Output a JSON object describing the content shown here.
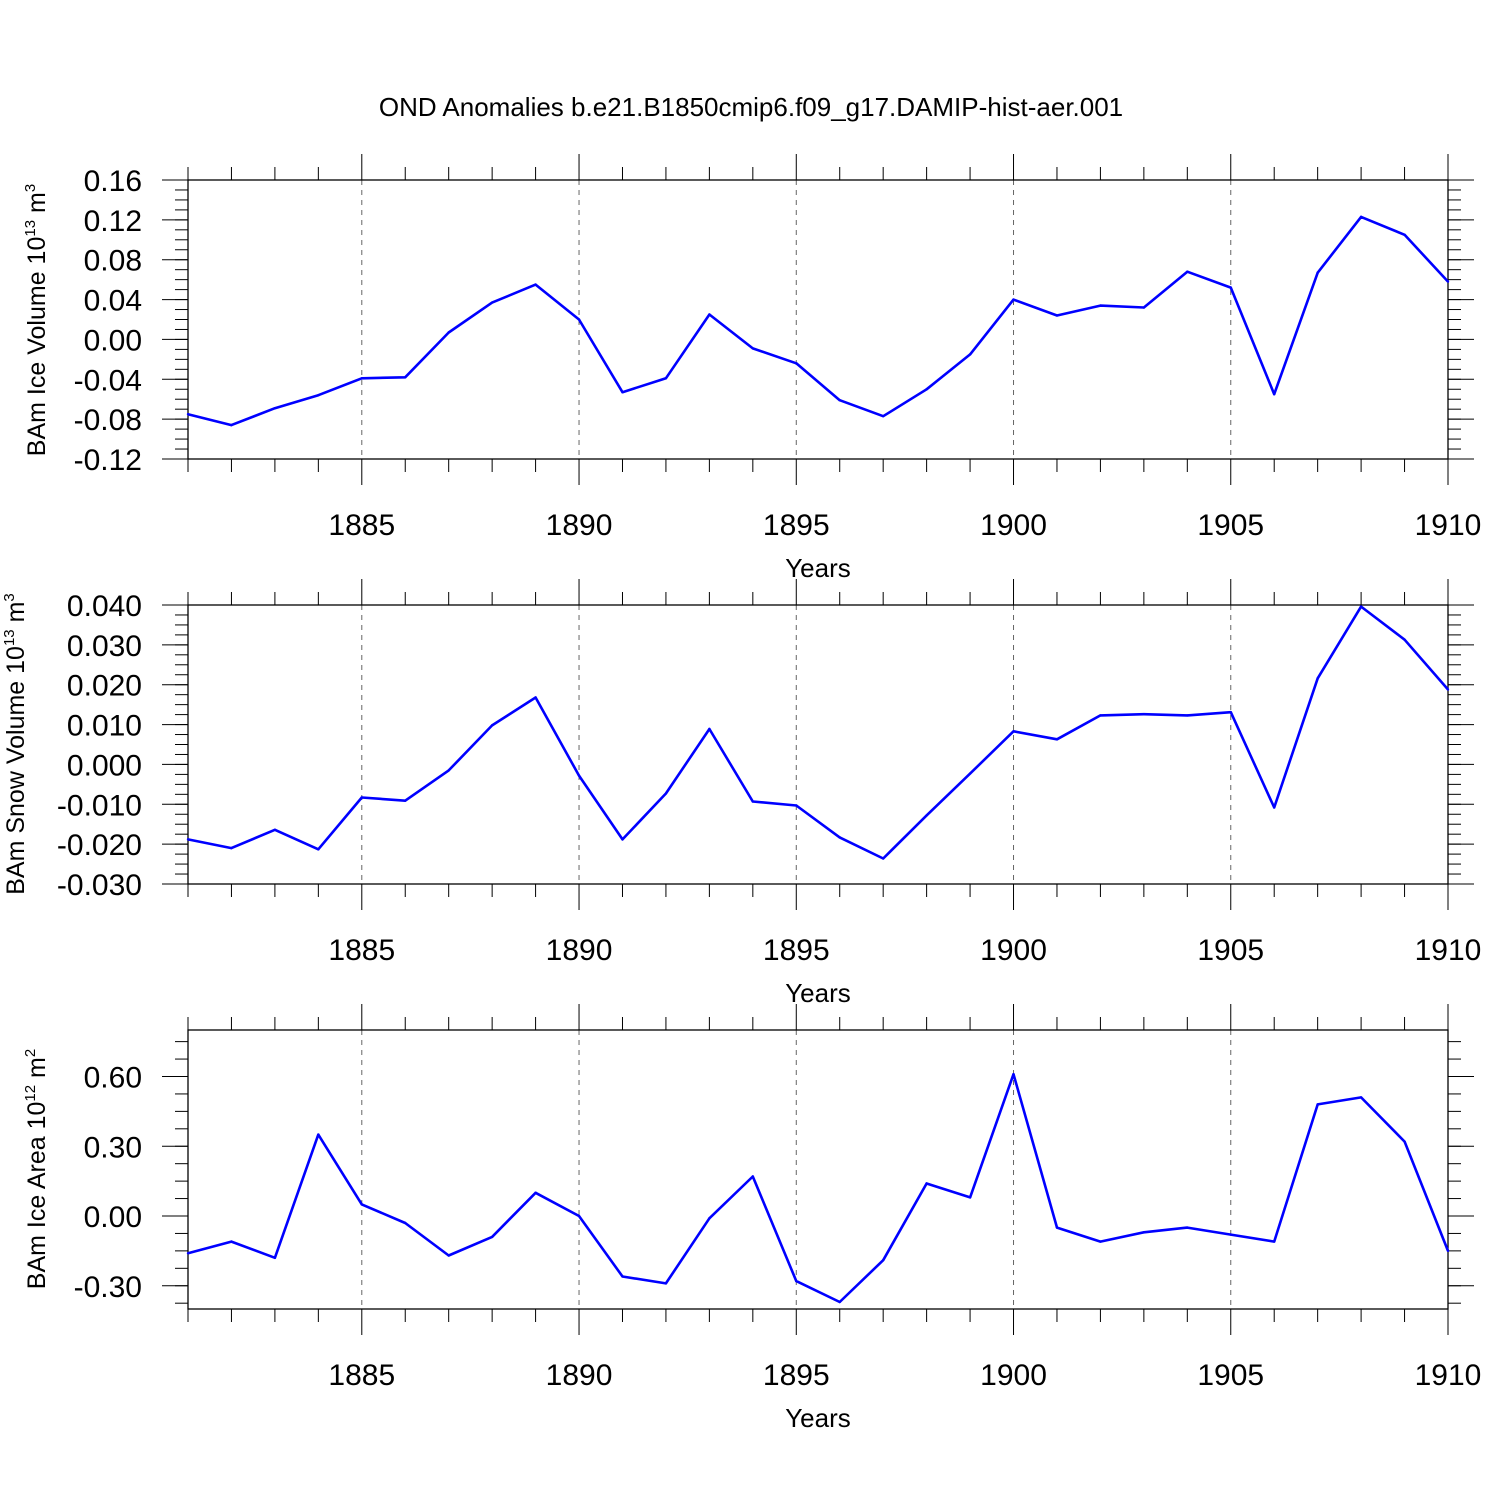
{
  "title": "OND Anomalies b.e21.B1850cmip6.f09_g17.DAMIP-hist-aer.001",
  "chart_data": [
    {
      "type": "line",
      "ylabel": {
        "text": "BAm Ice Volume 10",
        "exp": "13",
        "unit": " m",
        "unit_exp": "3"
      },
      "xlabel": "Years",
      "xlim": [
        1881,
        1910
      ],
      "ylim": [
        -0.12,
        0.16
      ],
      "yticks": [
        -0.12,
        -0.08,
        -0.04,
        0.0,
        0.04,
        0.08,
        0.12,
        0.16
      ],
      "ytick_labels": [
        "-0.12",
        "-0.08",
        "-0.04",
        "0.00",
        "0.04",
        "0.08",
        "0.12",
        "0.16"
      ],
      "xticks": [
        1885,
        1890,
        1895,
        1900,
        1905,
        1910
      ],
      "xtick_labels": [
        "1885",
        "1890",
        "1895",
        "1900",
        "1905",
        "1910"
      ],
      "grid": "vertical dashed at major x ticks",
      "color": "#0000ff",
      "x": [
        1881,
        1882,
        1883,
        1884,
        1885,
        1886,
        1887,
        1888,
        1889,
        1890,
        1891,
        1892,
        1893,
        1894,
        1895,
        1896,
        1897,
        1898,
        1899,
        1900,
        1901,
        1902,
        1903,
        1904,
        1905,
        1906,
        1907,
        1908,
        1909,
        1910
      ],
      "values": [
        -0.075,
        -0.086,
        -0.069,
        -0.056,
        -0.039,
        -0.038,
        0.007,
        0.037,
        0.055,
        0.02,
        -0.053,
        -0.039,
        0.025,
        -0.009,
        -0.024,
        -0.061,
        -0.077,
        -0.05,
        -0.015,
        0.04,
        0.024,
        0.034,
        0.032,
        0.068,
        0.052,
        -0.055,
        0.067,
        0.123,
        0.105,
        0.058
      ]
    },
    {
      "type": "line",
      "ylabel": {
        "text": "BAm Snow Volume 10",
        "exp": "13",
        "unit": " m",
        "unit_exp": "3"
      },
      "xlabel": "Years",
      "xlim": [
        1881,
        1910
      ],
      "ylim": [
        -0.03,
        0.04
      ],
      "yticks": [
        -0.03,
        -0.02,
        -0.01,
        0.0,
        0.01,
        0.02,
        0.03,
        0.04
      ],
      "ytick_labels": [
        "-0.030",
        "-0.020",
        "-0.010",
        "0.000",
        "0.010",
        "0.020",
        "0.030",
        "0.040"
      ],
      "xticks": [
        1885,
        1890,
        1895,
        1900,
        1905,
        1910
      ],
      "xtick_labels": [
        "1885",
        "1890",
        "1895",
        "1900",
        "1905",
        "1910"
      ],
      "grid": "vertical dashed at major x ticks",
      "color": "#0000ff",
      "x": [
        1881,
        1882,
        1883,
        1884,
        1885,
        1886,
        1887,
        1888,
        1889,
        1890,
        1891,
        1892,
        1893,
        1894,
        1895,
        1896,
        1897,
        1898,
        1899,
        1900,
        1901,
        1902,
        1903,
        1904,
        1905,
        1906,
        1907,
        1908,
        1909,
        1910
      ],
      "values": [
        -0.0188,
        -0.021,
        -0.0164,
        -0.0213,
        -0.0083,
        -0.0091,
        -0.0015,
        0.0098,
        0.0168,
        -0.0028,
        -0.0188,
        -0.0073,
        0.0089,
        -0.0093,
        -0.0103,
        -0.0183,
        -0.0236,
        -0.0128,
        -0.0023,
        0.0083,
        0.0063,
        0.0123,
        0.0126,
        0.0123,
        0.0131,
        -0.0108,
        0.0216,
        0.0396,
        0.0313,
        0.0188
      ]
    },
    {
      "type": "line",
      "ylabel": {
        "text": "BAm Ice Area 10",
        "exp": "12",
        "unit": " m",
        "unit_exp": "2"
      },
      "xlabel": "Years",
      "xlim": [
        1881,
        1910
      ],
      "ylim": [
        -0.4,
        0.8
      ],
      "yticks": [
        -0.3,
        0.0,
        0.3,
        0.6
      ],
      "ytick_labels": [
        "-0.30",
        "0.00",
        "0.30",
        "0.60"
      ],
      "xticks": [
        1885,
        1890,
        1895,
        1900,
        1905,
        1910
      ],
      "xtick_labels": [
        "1885",
        "1890",
        "1895",
        "1900",
        "1905",
        "1910"
      ],
      "grid": "vertical dashed at major x ticks",
      "color": "#0000ff",
      "x": [
        1881,
        1882,
        1883,
        1884,
        1885,
        1886,
        1887,
        1888,
        1889,
        1890,
        1891,
        1892,
        1893,
        1894,
        1895,
        1896,
        1897,
        1898,
        1899,
        1900,
        1901,
        1902,
        1903,
        1904,
        1905,
        1906,
        1907,
        1908,
        1909,
        1910
      ],
      "values": [
        -0.16,
        -0.11,
        -0.18,
        0.35,
        0.05,
        -0.03,
        -0.17,
        -0.09,
        0.1,
        0.0,
        -0.26,
        -0.29,
        -0.01,
        0.17,
        -0.28,
        -0.37,
        -0.19,
        0.14,
        0.08,
        0.61,
        -0.05,
        -0.11,
        -0.07,
        -0.05,
        -0.08,
        -0.11,
        0.48,
        0.51,
        0.32,
        -0.15
      ]
    }
  ]
}
